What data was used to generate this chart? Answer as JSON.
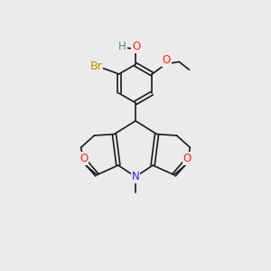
{
  "background_color": "#ebebeb",
  "bond_color": "#1a1a1a",
  "figsize": [
    3.0,
    3.0
  ],
  "dpi": 100,
  "atom_labels": {
    "H": {
      "color": "#4a8f8f"
    },
    "O": {
      "color": "#ff2200"
    },
    "Br": {
      "color": "#cc8800"
    },
    "N": {
      "color": "#2222ff"
    }
  }
}
